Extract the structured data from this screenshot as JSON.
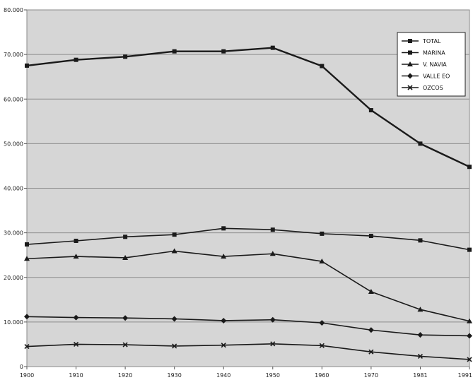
{
  "chart_data": {
    "type": "line",
    "x": [
      "1900",
      "1910",
      "1920",
      "1930",
      "1940",
      "1950",
      "1960",
      "1970",
      "1981",
      "1991"
    ],
    "ylim": [
      0,
      80000
    ],
    "yticks": [
      0,
      10000,
      20000,
      30000,
      40000,
      50000,
      60000,
      70000,
      80000
    ],
    "ytick_labels": [
      "0",
      "10.000",
      "20.000",
      "30.000",
      "40.000",
      "50.000",
      "60.000",
      "70.000",
      "80.000"
    ],
    "grid": true,
    "legend_position": "top-right",
    "plot_background": "#d6d6d6",
    "line_color": "#1a1a1a",
    "series": [
      {
        "name": "TOTAL",
        "marker": "square",
        "values": [
          67500,
          68800,
          69500,
          70700,
          70700,
          71500,
          67400,
          57500,
          50000,
          44800
        ]
      },
      {
        "name": "MARINA",
        "marker": "square",
        "values": [
          27400,
          28200,
          29100,
          29600,
          31000,
          30700,
          29800,
          29300,
          28300,
          26200
        ]
      },
      {
        "name": "V. NAVIA",
        "marker": "triangle",
        "values": [
          24200,
          24700,
          24400,
          25900,
          24700,
          25300,
          23600,
          16800,
          12800,
          10200
        ]
      },
      {
        "name": "VALLE EO",
        "marker": "diamond",
        "values": [
          11200,
          11000,
          10900,
          10700,
          10300,
          10500,
          9800,
          8200,
          7100,
          6900
        ]
      },
      {
        "name": "OZCOS",
        "marker": "x",
        "values": [
          4500,
          5000,
          4900,
          4600,
          4800,
          5100,
          4700,
          3300,
          2300,
          1600
        ]
      }
    ]
  }
}
